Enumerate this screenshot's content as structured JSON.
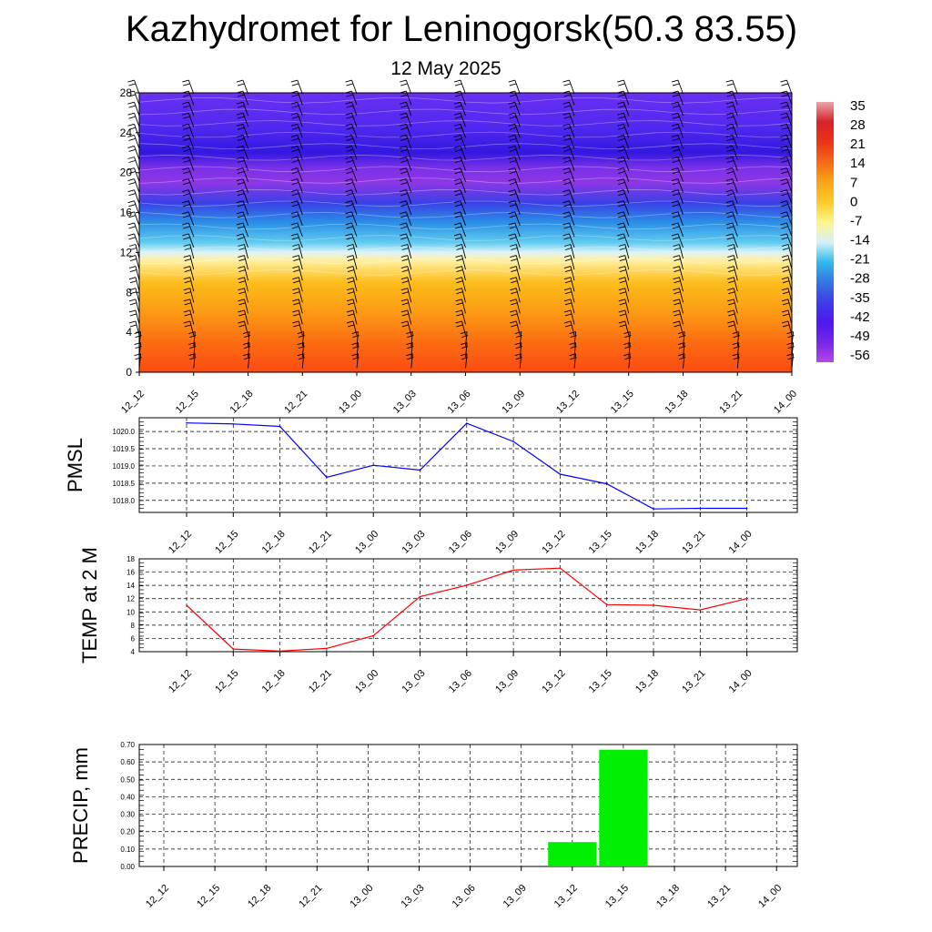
{
  "title": "Kazhydromet for Leninogorsk(50.3 83.55)",
  "subtitle": "12 May 2025",
  "chart_data": [
    {
      "type": "heatmap",
      "x_tick_labels": [
        "12_12",
        "12_15",
        "12_18",
        "12_21",
        "13_00",
        "13_03",
        "13_06",
        "13_09",
        "13_12",
        "13_15",
        "13_18",
        "13_21",
        "14_00"
      ],
      "y_tick_labels": [
        "0",
        "4",
        "8",
        "12",
        "16",
        "20",
        "24",
        "28"
      ],
      "ylim": [
        0,
        28
      ],
      "colorbar_labels": [
        "35",
        "28",
        "21",
        "14",
        "7",
        "0",
        "-7",
        "-14",
        "-21",
        "-28",
        "-35",
        "-42",
        "-49",
        "-56"
      ],
      "colorbar_stops": [
        "#e9a4a8",
        "#d8222a",
        "#ea3318",
        "#f46a18",
        "#f9a516",
        "#fccb28",
        "#fff48a",
        "#d6f2f7",
        "#31b9ea",
        "#3575e3",
        "#3f3ce9",
        "#4d18ee",
        "#7626ea",
        "#b447e6"
      ],
      "wind_barbs": "present",
      "layers": [
        {
          "y": 0,
          "color": "#fb4a12"
        },
        {
          "y": 3,
          "color": "#fb6d12"
        },
        {
          "y": 6,
          "color": "#fc9a14"
        },
        {
          "y": 9,
          "color": "#fdbd1a"
        },
        {
          "y": 11.2,
          "color": "#fff0a0"
        },
        {
          "y": 12,
          "color": "#dff3f8"
        },
        {
          "y": 13,
          "color": "#60cbef"
        },
        {
          "y": 15,
          "color": "#2a8fe7"
        },
        {
          "y": 17,
          "color": "#3a40e6"
        },
        {
          "y": 19,
          "color": "#8e36e6"
        },
        {
          "y": 20.5,
          "color": "#7a30e8"
        },
        {
          "y": 22,
          "color": "#3218e0"
        },
        {
          "y": 24.5,
          "color": "#5128f0"
        },
        {
          "y": 28,
          "color": "#6a30f2"
        }
      ]
    },
    {
      "type": "line",
      "ylabel": "PMSL",
      "x_tick_labels": [
        "12_12",
        "12_15",
        "12_18",
        "12_21",
        "13_00",
        "13_03",
        "13_06",
        "13_09",
        "13_12",
        "13_15",
        "13_18",
        "13_21",
        "14_00"
      ],
      "y_tick_labels": [
        "1018.0",
        "1018.5",
        "1019.0",
        "1019.5",
        "1020.0"
      ],
      "ylim": [
        1017.65,
        1020.4
      ],
      "series": [
        {
          "color": "#0000ff",
          "values": [
            1020.25,
            1020.22,
            1020.15,
            1018.67,
            1019.02,
            1018.88,
            1020.24,
            1019.71,
            1018.76,
            1018.48,
            1017.75,
            1017.77,
            1017.77
          ]
        }
      ]
    },
    {
      "type": "line",
      "ylabel": "TEMP at 2 M",
      "x_tick_labels": [
        "12_12",
        "12_15",
        "12_18",
        "12_21",
        "13_00",
        "13_03",
        "13_06",
        "13_09",
        "13_12",
        "13_15",
        "13_18",
        "13_21",
        "14_00"
      ],
      "y_tick_labels": [
        "4",
        "6",
        "8",
        "10",
        "12",
        "14",
        "16",
        "18"
      ],
      "ylim": [
        4,
        18
      ],
      "series": [
        {
          "color": "#ff0000",
          "values": [
            11.0,
            4.4,
            4.1,
            4.5,
            6.4,
            12.3,
            14.0,
            16.3,
            16.6,
            11.1,
            11.0,
            10.3,
            12.0
          ]
        }
      ]
    },
    {
      "type": "bar",
      "ylabel": "PRECIP, mm",
      "x_tick_labels": [
        "12_12",
        "12_15",
        "12_18",
        "12_21",
        "13_00",
        "13_03",
        "13_06",
        "13_09",
        "13_12",
        "13_15",
        "13_18",
        "13_21",
        "14_00"
      ],
      "y_tick_labels": [
        "0.00",
        "0.10",
        "0.20",
        "0.30",
        "0.40",
        "0.50",
        "0.60",
        "0.70"
      ],
      "ylim": [
        0,
        0.7
      ],
      "bar_color": "#00ee00",
      "values": [
        0,
        0,
        0,
        0,
        0,
        0,
        0,
        0,
        0.14,
        0.67,
        0,
        0,
        0
      ]
    }
  ]
}
